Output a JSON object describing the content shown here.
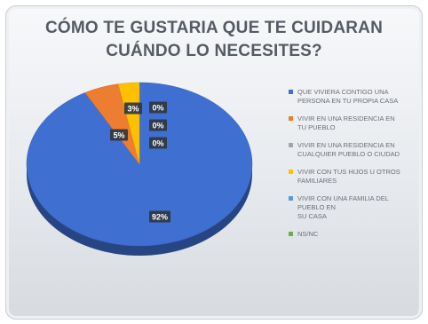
{
  "chart_data": {
    "type": "pie",
    "title_lines": [
      "CÓMO TE GUSTARIA QUE TE CUIDARAN",
      "CUÁNDO LO NECESITES?"
    ],
    "legend_position": "right",
    "series": [
      {
        "name": "QUE VIVIERA CONTIGO UNA\nPERSONA EN TU PROPIA CASA",
        "value": 92,
        "label": "92%",
        "color": "#3f6fd1"
      },
      {
        "name": "VIVIR EN UNA RESIDENCIA EN\nTU PUEBLO",
        "value": 5,
        "label": "5%",
        "color": "#ed7d31"
      },
      {
        "name": "VIVIR EN UNA RESIDENCIA EN\nCUALQUIER PUEBLO O CIUDAD",
        "value": 0,
        "label": "0%",
        "color": "#a5a5a5"
      },
      {
        "name": "VIVIR CON TUS HIJOS U OTROS\nFAMILIARES",
        "value": 3,
        "label": "3%",
        "color": "#ffc000"
      },
      {
        "name": "VIVIR CON UNA FAMILIA DEL\nPUEBLO EN\nSU CASA",
        "value": 0,
        "label": "0%",
        "color": "#5b9bd5"
      },
      {
        "name": "NS/NC",
        "value": 0,
        "label": "0%",
        "color": "#70ad47"
      }
    ]
  }
}
